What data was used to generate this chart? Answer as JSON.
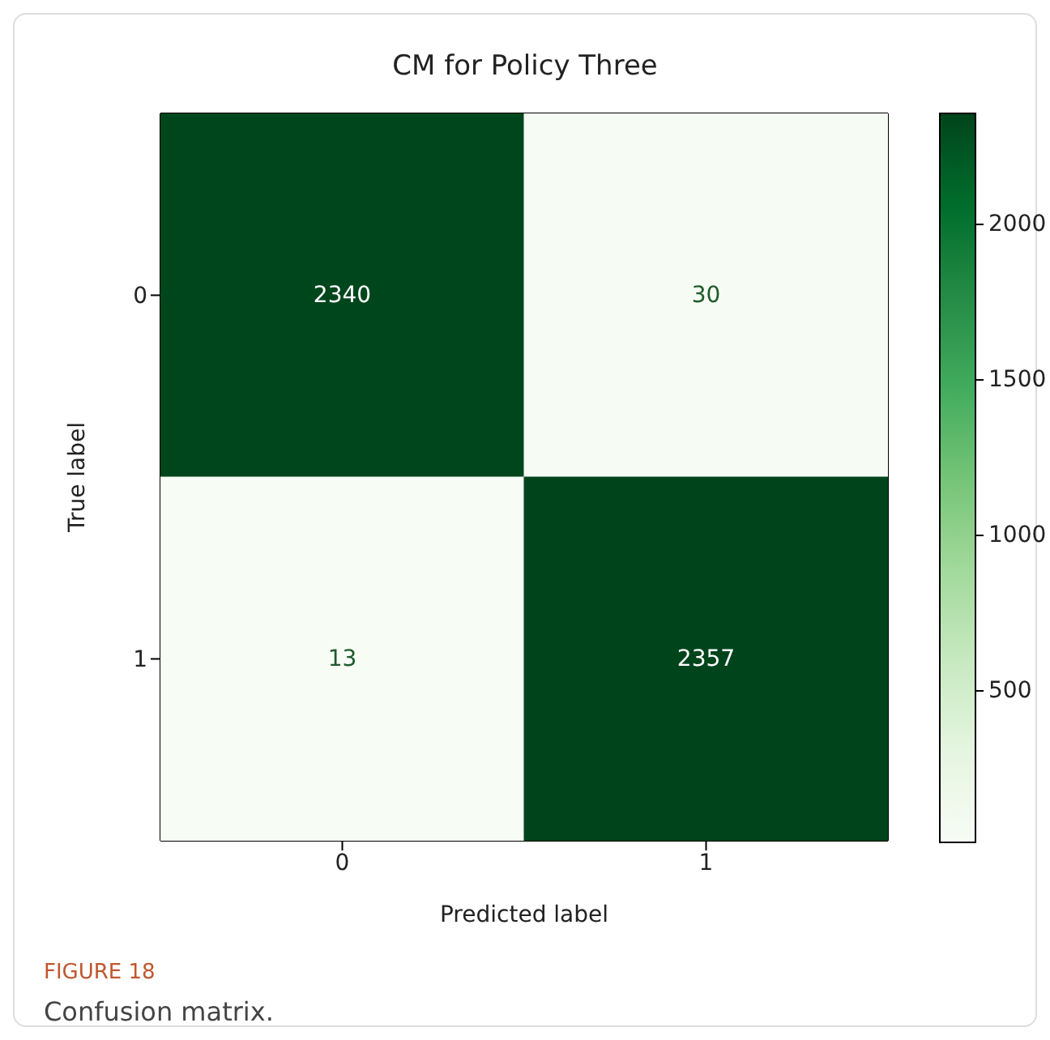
{
  "chart_data": {
    "type": "heatmap",
    "title": "CM for Policy Three",
    "xlabel": "Predicted label",
    "ylabel": "True label",
    "categories": [
      "0",
      "1"
    ],
    "y_categories": [
      "0",
      "1"
    ],
    "cells": [
      [
        2340,
        30
      ],
      [
        13,
        2357
      ]
    ],
    "data_labels": true,
    "clim": [
      13,
      2357
    ],
    "cticks": [
      500,
      1000,
      1500,
      2000
    ],
    "annotations": [
      "FIGURE 18",
      "Confusion matrix."
    ]
  }
}
